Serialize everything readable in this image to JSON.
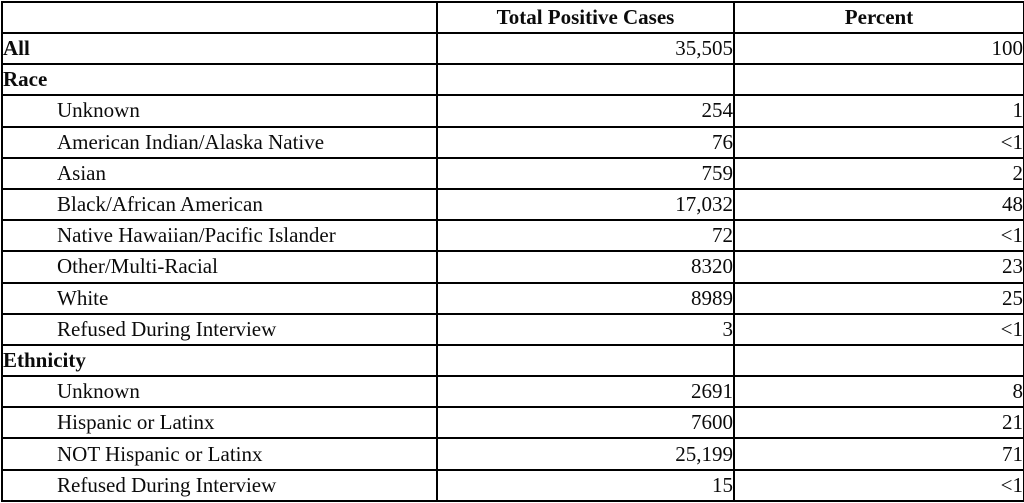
{
  "table": {
    "columns": [
      "",
      "Total Positive Cases",
      "Percent"
    ],
    "rows": [
      {
        "label": "All",
        "cases": "35,505",
        "percent": "100"
      },
      {
        "label": "Race",
        "cases": "",
        "percent": ""
      },
      {
        "label": "Unknown",
        "cases": "254",
        "percent": "1"
      },
      {
        "label": "American Indian/Alaska Native",
        "cases": "76",
        "percent": "<1"
      },
      {
        "label": "Asian",
        "cases": "759",
        "percent": "2"
      },
      {
        "label": "Black/African American",
        "cases": "17,032",
        "percent": "48"
      },
      {
        "label": "Native Hawaiian/Pacific Islander",
        "cases": "72",
        "percent": "<1"
      },
      {
        "label": "Other/Multi-Racial",
        "cases": "8320",
        "percent": "23"
      },
      {
        "label": "White",
        "cases": "8989",
        "percent": "25"
      },
      {
        "label": "Refused During Interview",
        "cases": "3",
        "percent": "<1"
      },
      {
        "label": "Ethnicity",
        "cases": "",
        "percent": ""
      },
      {
        "label": "Unknown",
        "cases": "2691",
        "percent": "8"
      },
      {
        "label": "Hispanic or Latinx",
        "cases": "7600",
        "percent": "21"
      },
      {
        "label": "NOT Hispanic or Latinx",
        "cases": "25,199",
        "percent": "71"
      },
      {
        "label": "Refused During Interview",
        "cases": "15",
        "percent": "<1"
      }
    ]
  }
}
